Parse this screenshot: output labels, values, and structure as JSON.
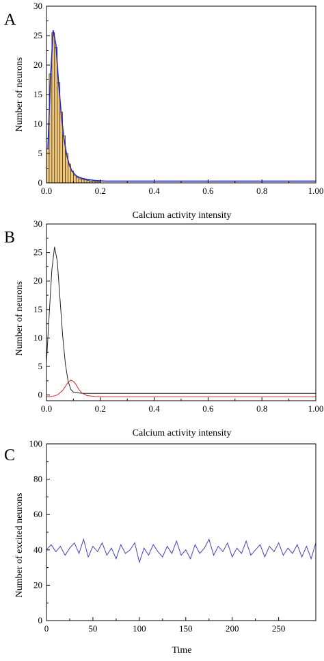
{
  "colors": {
    "bar_fill": "#f0c980",
    "bar_stroke": "#333333",
    "fit_blue": "#2a2ab8",
    "line_black": "#222222",
    "line_red": "#d02828",
    "trace_blue": "#4040c0"
  },
  "chart_data": [
    {
      "type": "bar",
      "panel_label": "A",
      "xlabel": "Calcium activity intensity",
      "ylabel": "Number of neurons",
      "xlim": [
        0,
        1.0
      ],
      "ylim": [
        0,
        30
      ],
      "xticks": [
        "0.0",
        "0.2",
        "0.4",
        "0.6",
        "0.8",
        "1.00"
      ],
      "yticks": [
        "0",
        "5",
        "10",
        "15",
        "20",
        "25",
        "30"
      ],
      "grid": false,
      "bins": {
        "x": [
          0.005,
          0.015,
          0.025,
          0.035,
          0.045,
          0.055,
          0.065,
          0.075,
          0.085,
          0.095,
          0.105,
          0.115,
          0.125,
          0.135,
          0.145,
          0.155,
          0.165,
          0.175,
          0.185,
          0.195
        ],
        "values": [
          5.8,
          18.5,
          25.5,
          23.0,
          17.0,
          12.0,
          8.0,
          5.0,
          3.2,
          2.0,
          1.3,
          0.9,
          0.7,
          0.6,
          0.5,
          0.4,
          0.3,
          0.3,
          0.2,
          0.2
        ]
      },
      "fit_curve": {
        "x": [
          0.005,
          0.015,
          0.025,
          0.035,
          0.045,
          0.055,
          0.065,
          0.075,
          0.085,
          0.095,
          0.11,
          0.13,
          0.15,
          0.18,
          0.22,
          0.3,
          0.5,
          0.7,
          0.9,
          1.0
        ],
        "y": [
          5.7,
          18.0,
          25.9,
          23.5,
          17.0,
          11.5,
          7.5,
          4.8,
          3.0,
          2.0,
          1.2,
          0.8,
          0.6,
          0.4,
          0.3,
          0.3,
          0.3,
          0.3,
          0.3,
          0.3
        ]
      }
    },
    {
      "type": "line",
      "panel_label": "B",
      "xlabel": "Calcium activity intensity",
      "ylabel": "Number of neurons",
      "xlim": [
        0,
        1.0
      ],
      "ylim": [
        -1,
        30
      ],
      "xticks": [
        "0.0",
        "0.2",
        "0.4",
        "0.6",
        "0.8",
        "1.00"
      ],
      "yticks": [
        "0",
        "5",
        "10",
        "15",
        "20",
        "25",
        "30"
      ],
      "grid": false,
      "series": [
        {
          "x": [
            0.0,
            0.01,
            0.02,
            0.03,
            0.04,
            0.05,
            0.06,
            0.07,
            0.08,
            0.09,
            0.1,
            0.12,
            0.14,
            0.2,
            0.4,
            0.6,
            0.8,
            1.0
          ],
          "y": [
            5.7,
            14.0,
            22.0,
            26.0,
            23.5,
            17.0,
            10.5,
            5.5,
            2.5,
            1.0,
            0.5,
            0.35,
            0.3,
            0.3,
            0.3,
            0.3,
            0.3,
            0.3
          ]
        },
        {
          "x": [
            0.0,
            0.02,
            0.04,
            0.06,
            0.07,
            0.08,
            0.09,
            0.1,
            0.11,
            0.12,
            0.13,
            0.15,
            0.18,
            0.22,
            0.3,
            0.5,
            0.8,
            1.0
          ],
          "y": [
            -0.3,
            -0.25,
            0.0,
            0.8,
            1.5,
            2.2,
            2.6,
            2.4,
            1.8,
            1.0,
            0.4,
            -0.1,
            -0.25,
            -0.3,
            -0.3,
            -0.3,
            -0.3,
            -0.3
          ]
        }
      ]
    },
    {
      "type": "line",
      "panel_label": "C",
      "xlabel": "Time",
      "ylabel": "Number of excited neurons",
      "xlim": [
        0,
        290
      ],
      "ylim": [
        0,
        100
      ],
      "xticks": [
        0,
        50,
        100,
        150,
        200,
        250
      ],
      "yticks": [
        0,
        20,
        40,
        60,
        80,
        100
      ],
      "grid": false,
      "series": [
        {
          "x": [
            0,
            5,
            10,
            15,
            20,
            25,
            30,
            35,
            40,
            45,
            50,
            55,
            60,
            65,
            70,
            75,
            80,
            85,
            90,
            95,
            100,
            105,
            110,
            115,
            120,
            125,
            130,
            135,
            140,
            145,
            150,
            155,
            160,
            165,
            170,
            175,
            180,
            185,
            190,
            195,
            200,
            205,
            210,
            215,
            220,
            225,
            230,
            235,
            240,
            245,
            250,
            255,
            260,
            265,
            270,
            275,
            280,
            285,
            290
          ],
          "y": [
            40,
            43,
            39,
            42,
            37,
            41,
            44,
            38,
            46,
            36,
            42,
            39,
            44,
            37,
            41,
            35,
            43,
            38,
            40,
            44,
            33,
            41,
            37,
            43,
            39,
            36,
            42,
            38,
            45,
            37,
            40,
            35,
            43,
            38,
            41,
            46,
            37,
            42,
            39,
            44,
            36,
            41,
            38,
            45,
            37,
            40,
            43,
            36,
            42,
            39,
            44,
            37,
            41,
            38,
            43,
            36,
            42,
            35,
            44
          ]
        }
      ]
    }
  ]
}
